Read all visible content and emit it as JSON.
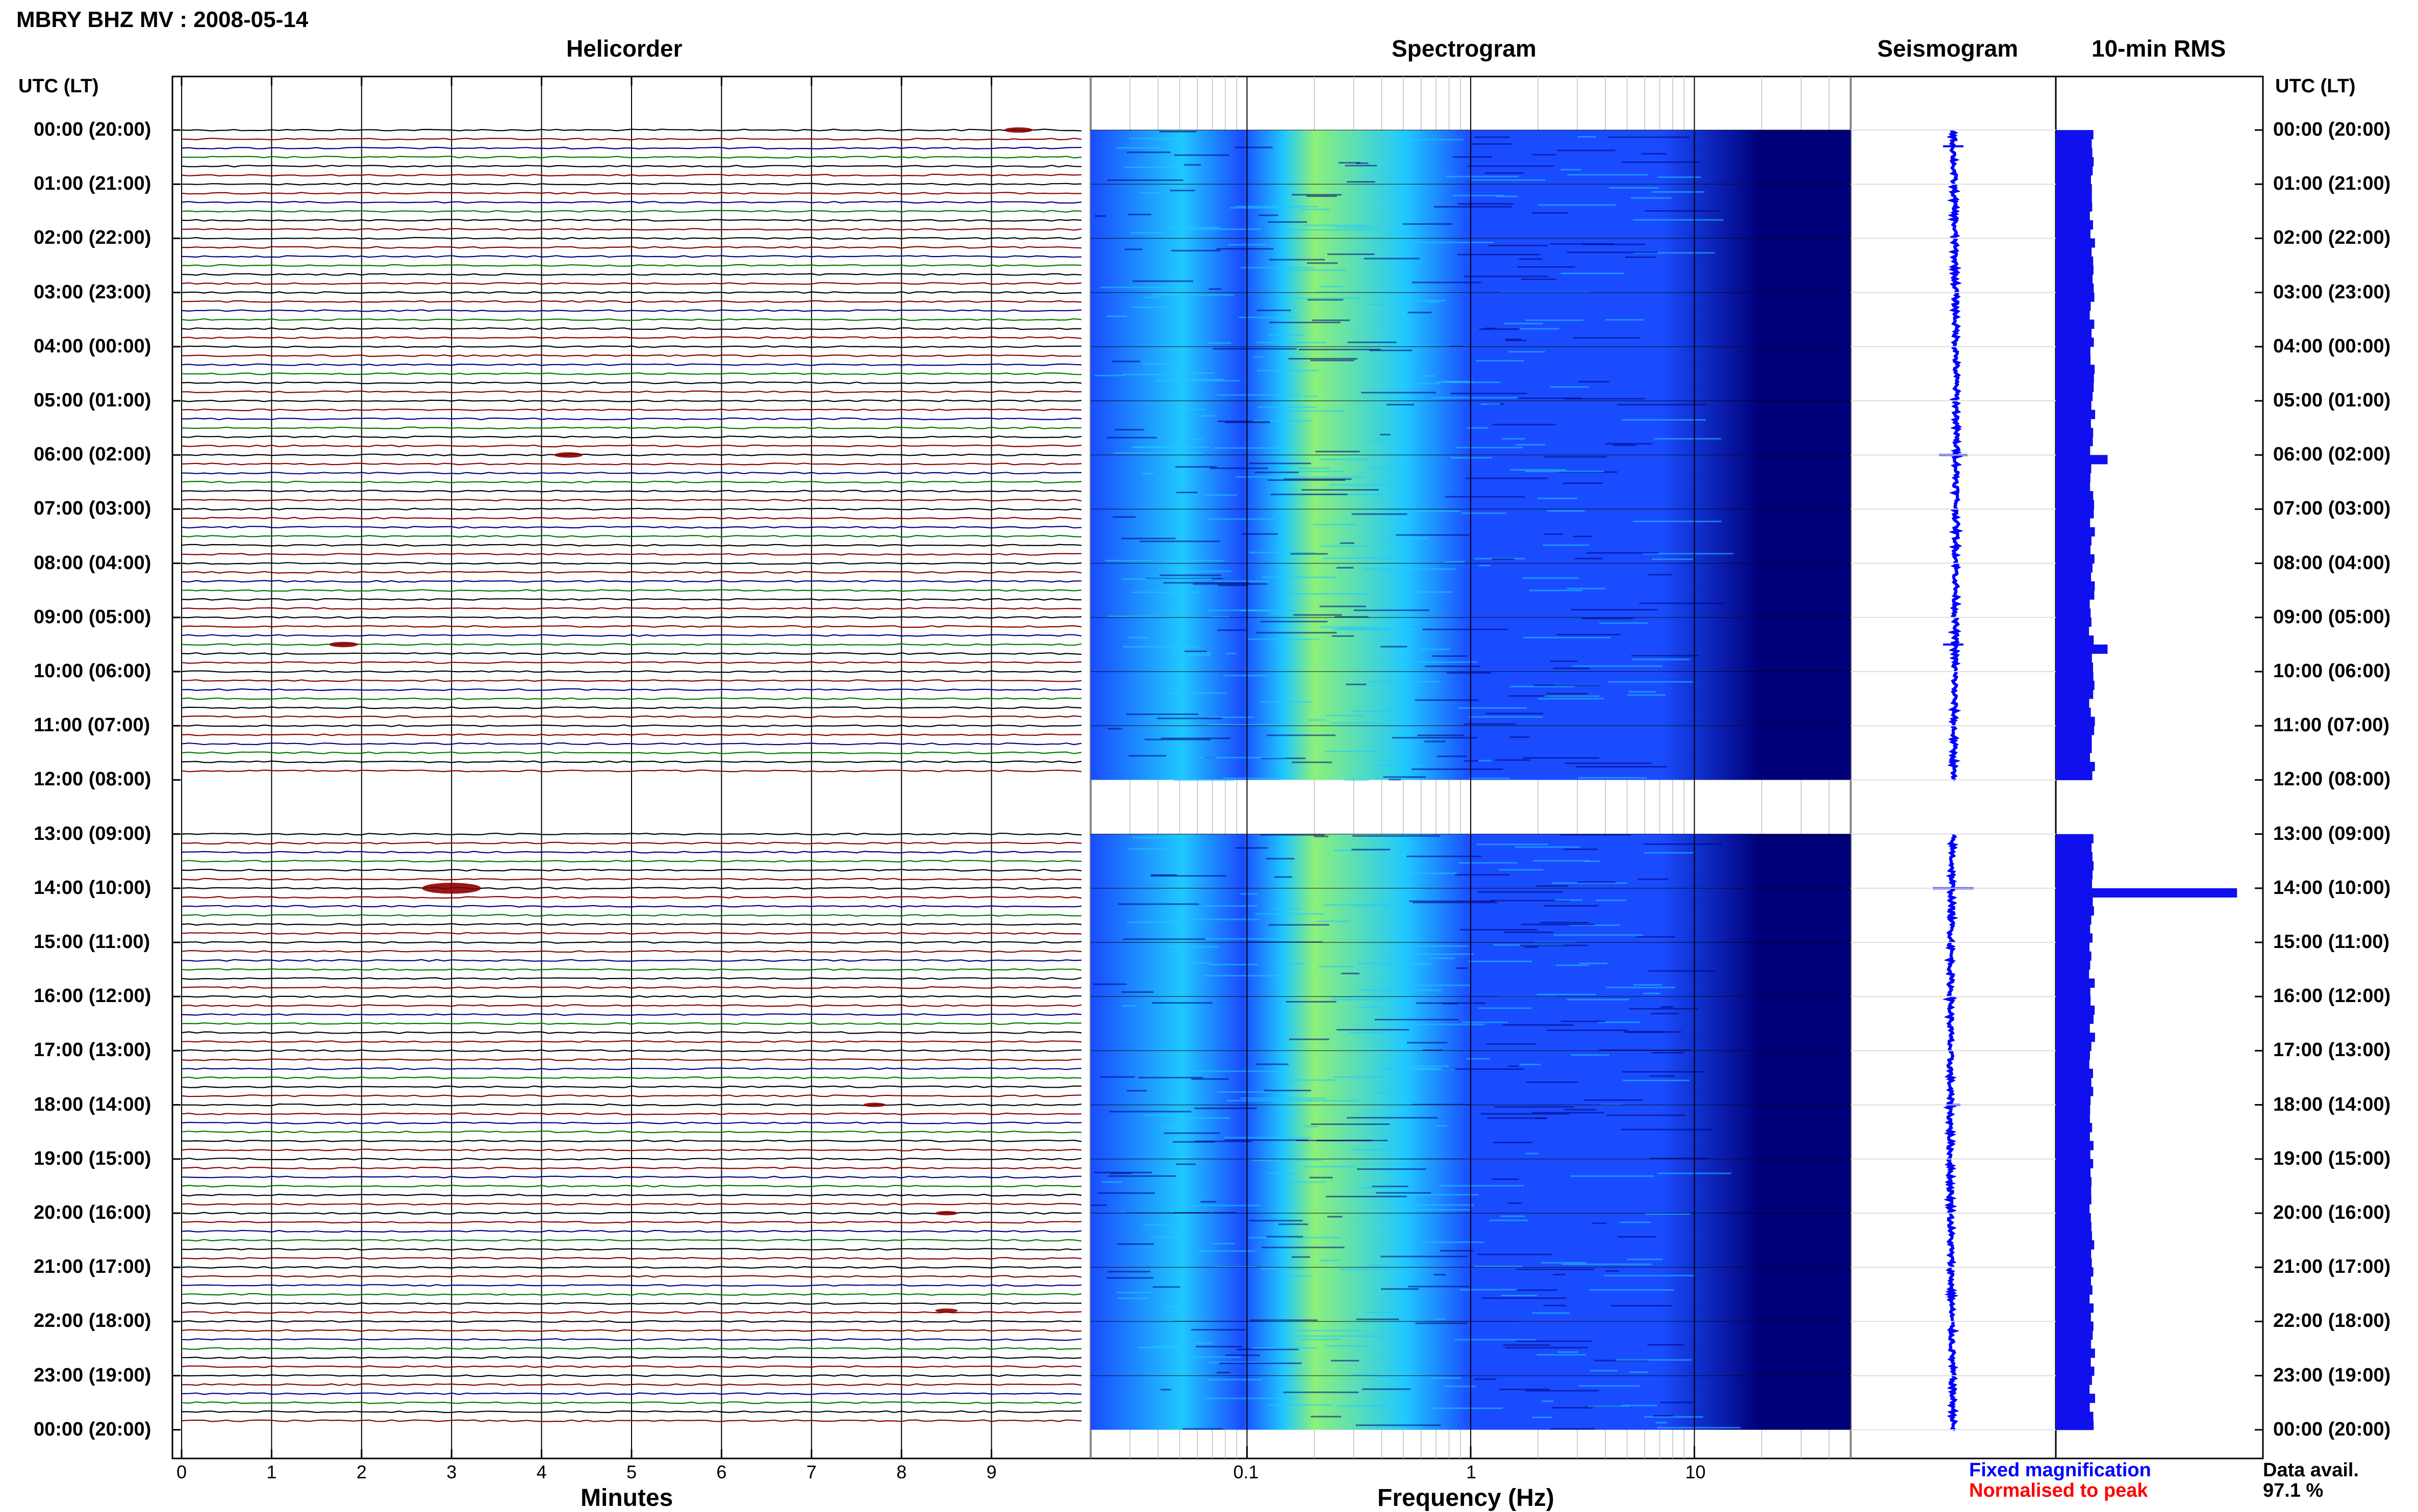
{
  "header": {
    "title": "MBRY BHZ MV : 2008-05-14"
  },
  "panels": {
    "helicorder": "Helicorder",
    "spectrogram": "Spectrogram",
    "seismogram": "Seismogram",
    "rms": "10-min RMS"
  },
  "axes": {
    "left_label": "UTC (LT)",
    "right_label": "UTC (LT)",
    "helicorder_xlabel": "Minutes",
    "spectrogram_xlabel": "Frequency (Hz)"
  },
  "legend": {
    "fixed": "Fixed magnification",
    "normalised": "Normalised to peak",
    "data_avail_label": "Data avail.",
    "data_avail_value": "97.1 %"
  },
  "colors": {
    "fixed": "#0000ff",
    "normalised": "#ff0000",
    "trace_cycle": [
      "#000000",
      "#8b0000",
      "#00008b",
      "#007a00"
    ],
    "rms_bar": "#1010ee",
    "spec_dark": "#00007a",
    "spec_mid": "#1a4cff",
    "spec_cyan": "#20c8ff",
    "spec_green": "#8cf07a"
  },
  "chart_data": [
    {
      "type": "line",
      "name": "Helicorder",
      "x_ticks": [
        "0",
        "1",
        "2",
        "3",
        "4",
        "5",
        "6",
        "7",
        "8",
        "9"
      ],
      "xlim": [
        0,
        10
      ],
      "traces_per_hour": 6,
      "hours": 24,
      "gap_hours": [
        12
      ],
      "events": [
        {
          "hour": 0.0,
          "minute": 9.3,
          "amp": 3
        },
        {
          "hour": 6.0,
          "minute": 4.3,
          "amp": 3
        },
        {
          "hour": 9.5,
          "minute": 1.8,
          "amp": 3
        },
        {
          "hour": 14.0,
          "minute": 3.0,
          "amp": 8
        },
        {
          "hour": 18.0,
          "minute": 7.7,
          "amp": 2
        },
        {
          "hour": 20.0,
          "minute": 8.5,
          "amp": 2
        },
        {
          "hour": 21.8,
          "minute": 8.5,
          "amp": 2
        }
      ]
    },
    {
      "type": "heatmap",
      "name": "Spectrogram",
      "x_scale": "log",
      "xlim": [
        0.02,
        50
      ],
      "x_ticks": [
        "0.1",
        "1",
        "10"
      ],
      "peak_freq_hz": 0.2,
      "gap_hours": [
        12
      ]
    },
    {
      "type": "line",
      "name": "Seismogram",
      "hours": 24,
      "gap_hours": [
        12
      ]
    },
    {
      "type": "bar",
      "name": "10-min RMS",
      "hours": 24,
      "baseline": 7,
      "spikes": [
        {
          "hour": 14.0,
          "value": 35
        },
        {
          "hour": 6.0,
          "value": 10
        },
        {
          "hour": 9.5,
          "value": 10
        }
      ]
    }
  ],
  "time_labels": [
    "00:00 (20:00)",
    "01:00 (21:00)",
    "02:00 (22:00)",
    "03:00 (23:00)",
    "04:00 (00:00)",
    "05:00 (01:00)",
    "06:00 (02:00)",
    "07:00 (03:00)",
    "08:00 (04:00)",
    "09:00 (05:00)",
    "10:00 (06:00)",
    "11:00 (07:00)",
    "12:00 (08:00)",
    "13:00 (09:00)",
    "14:00 (10:00)",
    "15:00 (11:00)",
    "16:00 (12:00)",
    "17:00 (13:00)",
    "18:00 (14:00)",
    "19:00 (15:00)",
    "20:00 (16:00)",
    "21:00 (17:00)",
    "22:00 (18:00)",
    "23:00 (19:00)",
    "00:00 (20:00)"
  ]
}
